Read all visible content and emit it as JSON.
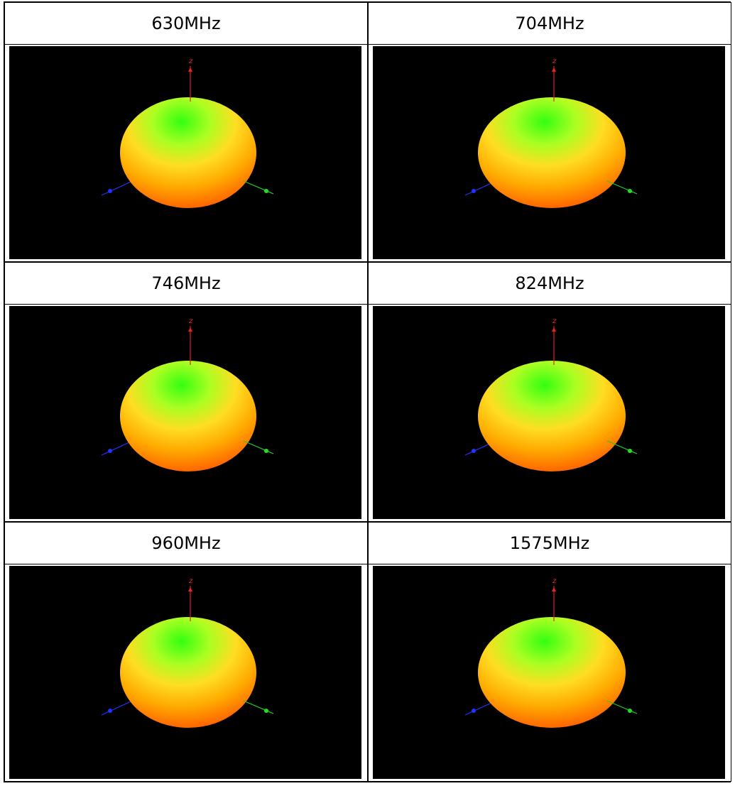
{
  "table": {
    "rows": [
      [
        {
          "label": "630MHz",
          "axis": "z"
        },
        {
          "label": "704MHz",
          "axis": "z"
        }
      ],
      [
        {
          "label": "746MHz",
          "axis": "z"
        },
        {
          "label": "824MHz",
          "axis": "z"
        }
      ],
      [
        {
          "label": "960MHz",
          "axis": "z"
        },
        {
          "label": "1575MHz",
          "axis": "z"
        }
      ]
    ]
  }
}
